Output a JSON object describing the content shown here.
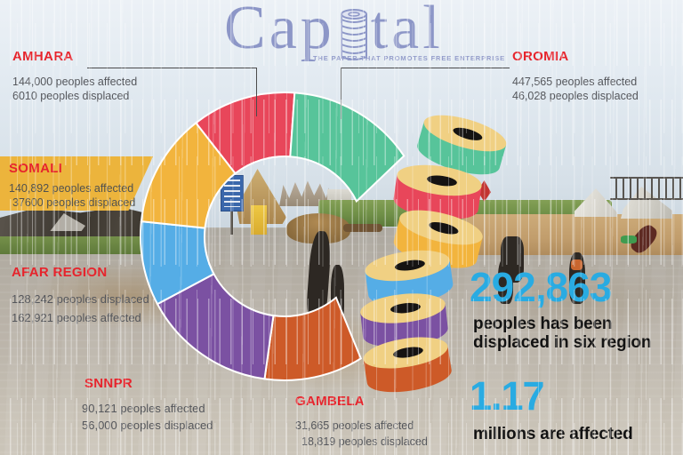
{
  "logo": {
    "word_before_i": "Cap",
    "word_after_i": "tal",
    "full_title": "Capital",
    "tagline": "THE PAPER THAT PROMOTES FREE ENTERPRISE"
  },
  "regions": [
    {
      "name": "AMHARA",
      "line1": "144,000 peoples affected",
      "line2": "6010 peoples displaced"
    },
    {
      "name": "OROMIA",
      "line1": "447,565 peoples affected",
      "line2": "46,028 peoples displaced"
    },
    {
      "name": "SOMALI",
      "line1": "140,892 peoples affected",
      "line2": "37600 peoples displaced"
    },
    {
      "name": "AFAR REGION",
      "line1": "128,242 peoples displaced",
      "line2": "162,921 peoples affected"
    },
    {
      "name": "SNNPR",
      "line1": "90,121 peoples affected",
      "line2": "56,000 peoples displaced"
    },
    {
      "name": "GAMBELA",
      "line1": "31,665 peoples affected",
      "line2": "18,819 peoples displaced"
    }
  ],
  "summary": {
    "displaced_value": "292,863",
    "displaced_caption_line1": "peoples has been",
    "displaced_caption_line2": "displaced in six region",
    "affected_value": "1.17",
    "affected_caption": "millions are affected"
  },
  "colors": {
    "accent_cyan": "#29abe2",
    "label_red": "#e6242c",
    "logo_periwinkle": "#8c96c7",
    "somali_box_yellow": "#ecb43c",
    "body_text_gray": "#54565b"
  },
  "chart_data": {
    "type": "pie",
    "variant": "C-shaped donut (Capital logo letterform) with falling coin stack as the letter i",
    "title": "Flood impact by region (Ethiopia)",
    "categories": [
      "AMHARA",
      "OROMIA",
      "SOMALI",
      "AFAR REGION",
      "SNNPR",
      "GAMBELA"
    ],
    "series": [
      {
        "name": "peoples affected",
        "values": [
          144000,
          447565,
          140892,
          162921,
          90121,
          31665
        ]
      },
      {
        "name": "peoples displaced",
        "values": [
          6010,
          46028,
          37600,
          128242,
          56000,
          18819
        ]
      }
    ],
    "totals": {
      "displaced_six_regions": 292863,
      "affected_millions": 1.17
    },
    "legend_position": "callout labels around chart with leader lines (AMHARA->red top, OROMIA->green top-right)",
    "grid": false,
    "segments": [
      {
        "label": "GAMBELA",
        "color": "#cd5a28",
        "start": 140,
        "end": 188,
        "start_outer": 148
      },
      {
        "label": "SNNPR",
        "color": "#7b51a2",
        "start": 188,
        "end": 242
      },
      {
        "label": "AFAR REGION",
        "color": "#55ade6",
        "start": 242,
        "end": 276
      },
      {
        "label": "SOMALI",
        "color": "#f2b43d",
        "start": 276,
        "end": 322
      },
      {
        "label": "AMHARA",
        "color": "#e8465a",
        "start": 322,
        "end": 364
      },
      {
        "label": "OROMIA",
        "color": "#57c49a",
        "start": 4,
        "end": 64,
        "end_outer": 56
      }
    ],
    "coin_stack_colors": [
      "#57c49a",
      "#e8465a",
      "#f2b43d",
      "#55ade6",
      "#7b51a2",
      "#cd5a28"
    ],
    "coin_top_color": "#f0d083",
    "coin_slot_color": "#151312"
  }
}
